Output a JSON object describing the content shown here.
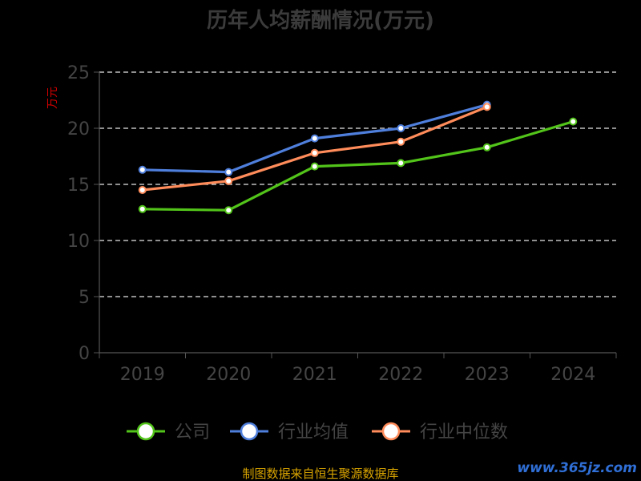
{
  "chart_data": {
    "type": "line",
    "title": "历年人均薪酬情况(万元)",
    "ylabel": "万元",
    "xlabel": "",
    "categories": [
      "2019",
      "2020",
      "2021",
      "2022",
      "2023",
      "2024"
    ],
    "ylim": [
      0,
      25
    ],
    "yticks": [
      "0",
      "5",
      "10",
      "15",
      "20",
      "25"
    ],
    "grid": true,
    "legend_position": "bottom",
    "series": [
      {
        "name": "公司",
        "color": "#52c41a",
        "values": [
          12.8,
          12.7,
          16.6,
          16.9,
          18.3,
          20.6
        ]
      },
      {
        "name": "行业均值",
        "color": "#4f7fdc",
        "values": [
          16.3,
          16.1,
          19.1,
          20.0,
          22.1,
          null
        ]
      },
      {
        "name": "行业中位数",
        "color": "#ff8c5a",
        "values": [
          14.5,
          15.3,
          17.8,
          18.8,
          21.9,
          null
        ]
      }
    ]
  },
  "footer": {
    "source": "制图数据来自恒生聚源数据库",
    "watermark": "www.365jz.com"
  }
}
